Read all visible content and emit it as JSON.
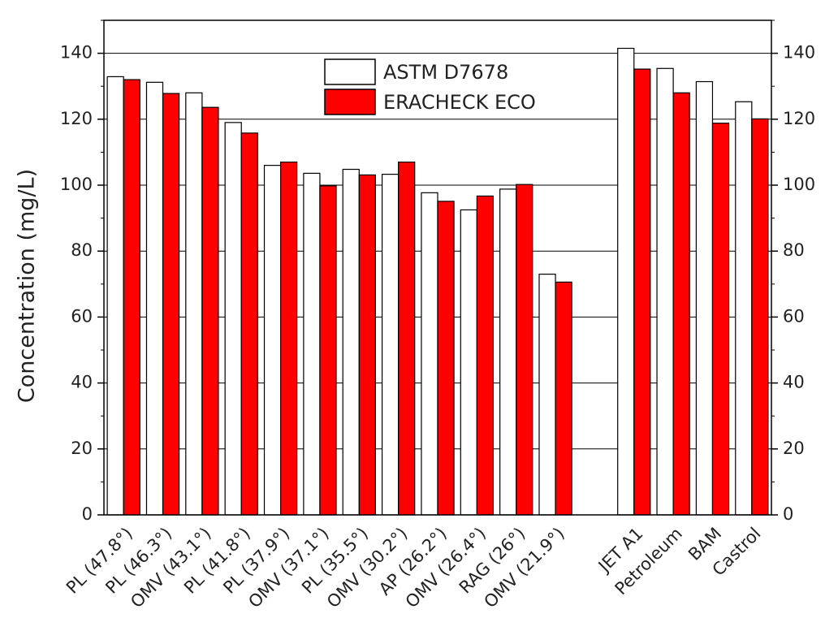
{
  "chart_data": {
    "type": "bar",
    "y_label": "Concentration (mg/L)",
    "categories": [
      "PL (47.8°)",
      "PL (46.3°)",
      "OMV (43.1°)",
      "PL (41.8°)",
      "PL (37.9°)",
      "OMV (37.1°)",
      "PL (35.5°)",
      "OMV (30.2°)",
      "AP (26.2°)",
      "OMV (26.4°)",
      "RAG (26°)",
      "OMV (21.9°)",
      null,
      "JET A1",
      "Petroleum",
      "BAM",
      "Castrol"
    ],
    "series": [
      {
        "name": "ASTM D7678",
        "color": "#ffffff",
        "values": [
          132.9,
          131.2,
          128,
          119,
          106,
          103.6,
          104.8,
          103.3,
          97.7,
          92.5,
          98.8,
          73,
          null,
          141.5,
          135.4,
          131.4,
          125.3
        ]
      },
      {
        "name": "ERACHECK ECO",
        "color": "#ff0000",
        "values": [
          132,
          127.8,
          123.6,
          115.8,
          107,
          99.8,
          103.1,
          107,
          95.1,
          96.7,
          100.2,
          70.6,
          null,
          135.2,
          128,
          118.8,
          120.1
        ]
      }
    ],
    "ylim": [
      0,
      150
    ],
    "yticks": [
      0,
      20,
      40,
      60,
      80,
      100,
      120,
      140
    ],
    "grid": true,
    "legend": "upper center",
    "right_axis_mirror": true
  }
}
